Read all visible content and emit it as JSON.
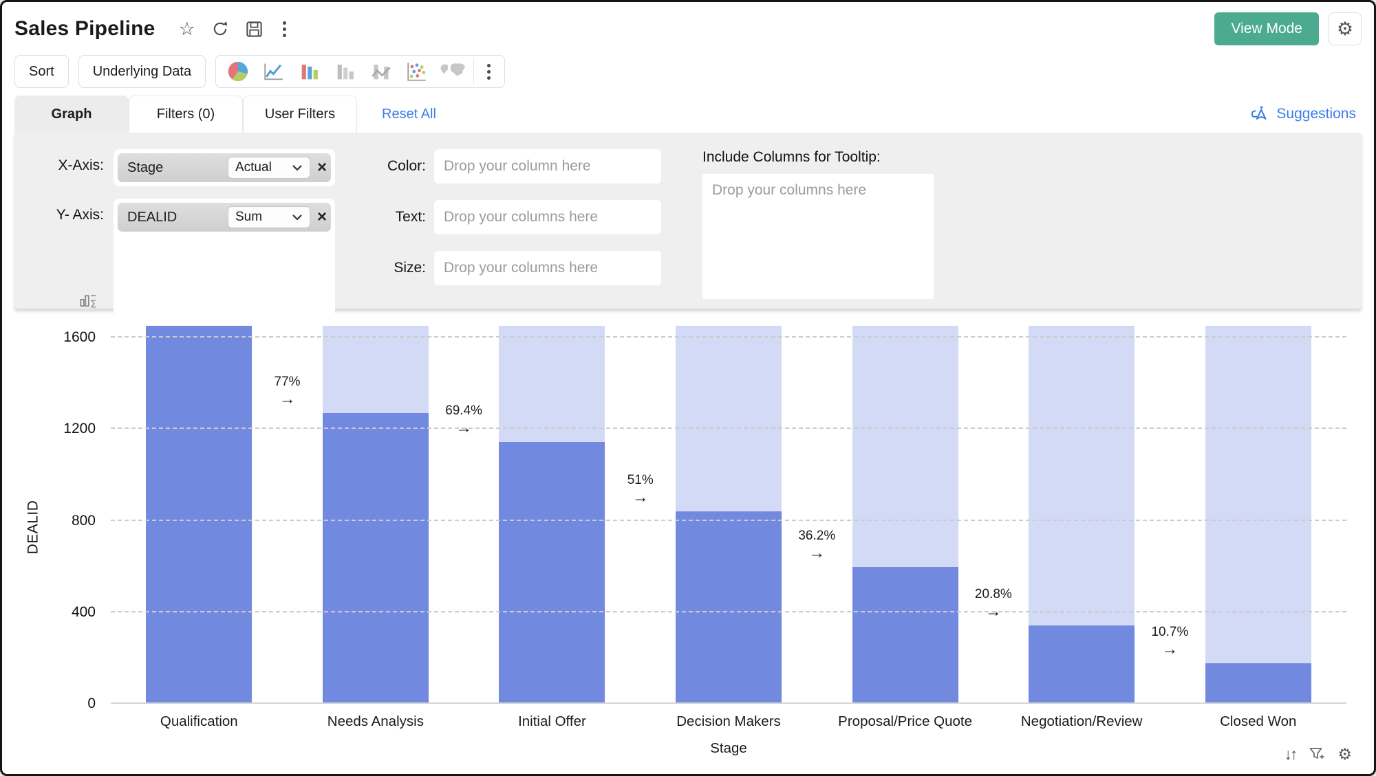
{
  "header": {
    "title": "Sales Pipeline",
    "view_mode_label": "View Mode",
    "icons": [
      "star",
      "refresh",
      "save",
      "more-kebab",
      "settings-gear"
    ]
  },
  "toolbar": {
    "sort_label": "Sort",
    "underlying_data_label": "Underlying Data",
    "chart_types": [
      "pie-chart",
      "line-chart",
      "bar-chart-colored",
      "bar-chart-gray",
      "combo-chart",
      "scatter-plot",
      "map-chart"
    ],
    "more_label": "more-kebab"
  },
  "tabs": {
    "graph": "Graph",
    "filters": "Filters  (0)",
    "user_filters": "User Filters",
    "reset_all": "Reset All",
    "suggestions": "Suggestions"
  },
  "config": {
    "x_axis_label": "X-Axis:",
    "x_field": "Stage",
    "x_aggregation": "Actual",
    "y_axis_label": "Y- Axis:",
    "y_field": "DEALID",
    "y_aggregation": "Sum",
    "color_label": "Color:",
    "color_placeholder": "Drop your column here",
    "text_label": "Text:",
    "text_placeholder": "Drop your columns here",
    "size_label": "Size:",
    "size_placeholder": "Drop your columns here",
    "tooltip_label": "Include Columns for Tooltip:",
    "tooltip_placeholder": "Drop your columns here"
  },
  "chart_data": {
    "type": "bar",
    "subtype": "conversion-funnel-columns",
    "title": "",
    "xlabel": "Stage",
    "ylabel": "DEALID",
    "categories": [
      "Qualification",
      "Needs Analysis",
      "Initial Offer",
      "Decision Makers",
      "Proposal/Price Quote",
      "Negotiation/Review",
      "Closed Won"
    ],
    "series": [
      {
        "name": "Sum of DEALID (achieved, estimated from axis)",
        "values": [
          1650,
          1271,
          1145,
          842,
          597,
          343,
          177
        ]
      },
      {
        "name": "Stage total reference (light bar)",
        "values": [
          1650,
          1650,
          1650,
          1650,
          1650,
          1650,
          1650
        ]
      }
    ],
    "conversion_percents": [
      77,
      69.4,
      51,
      36.2,
      20.8,
      10.7
    ],
    "conversion_labels": [
      "77%",
      "69.4%",
      "51%",
      "36.2%",
      "20.8%",
      "10.7%"
    ],
    "yticks": [
      0,
      400,
      800,
      1200,
      1600
    ],
    "ylim": [
      0,
      1660
    ],
    "grid": "horizontal-dashed",
    "legend": "none",
    "colors": {
      "achieved": "#7289e0",
      "remaining": "#d2daf6",
      "gridline": "#cbcbcb"
    }
  },
  "corner_tools": [
    "sort-arrows",
    "add-filter-funnel",
    "settings-gear"
  ]
}
